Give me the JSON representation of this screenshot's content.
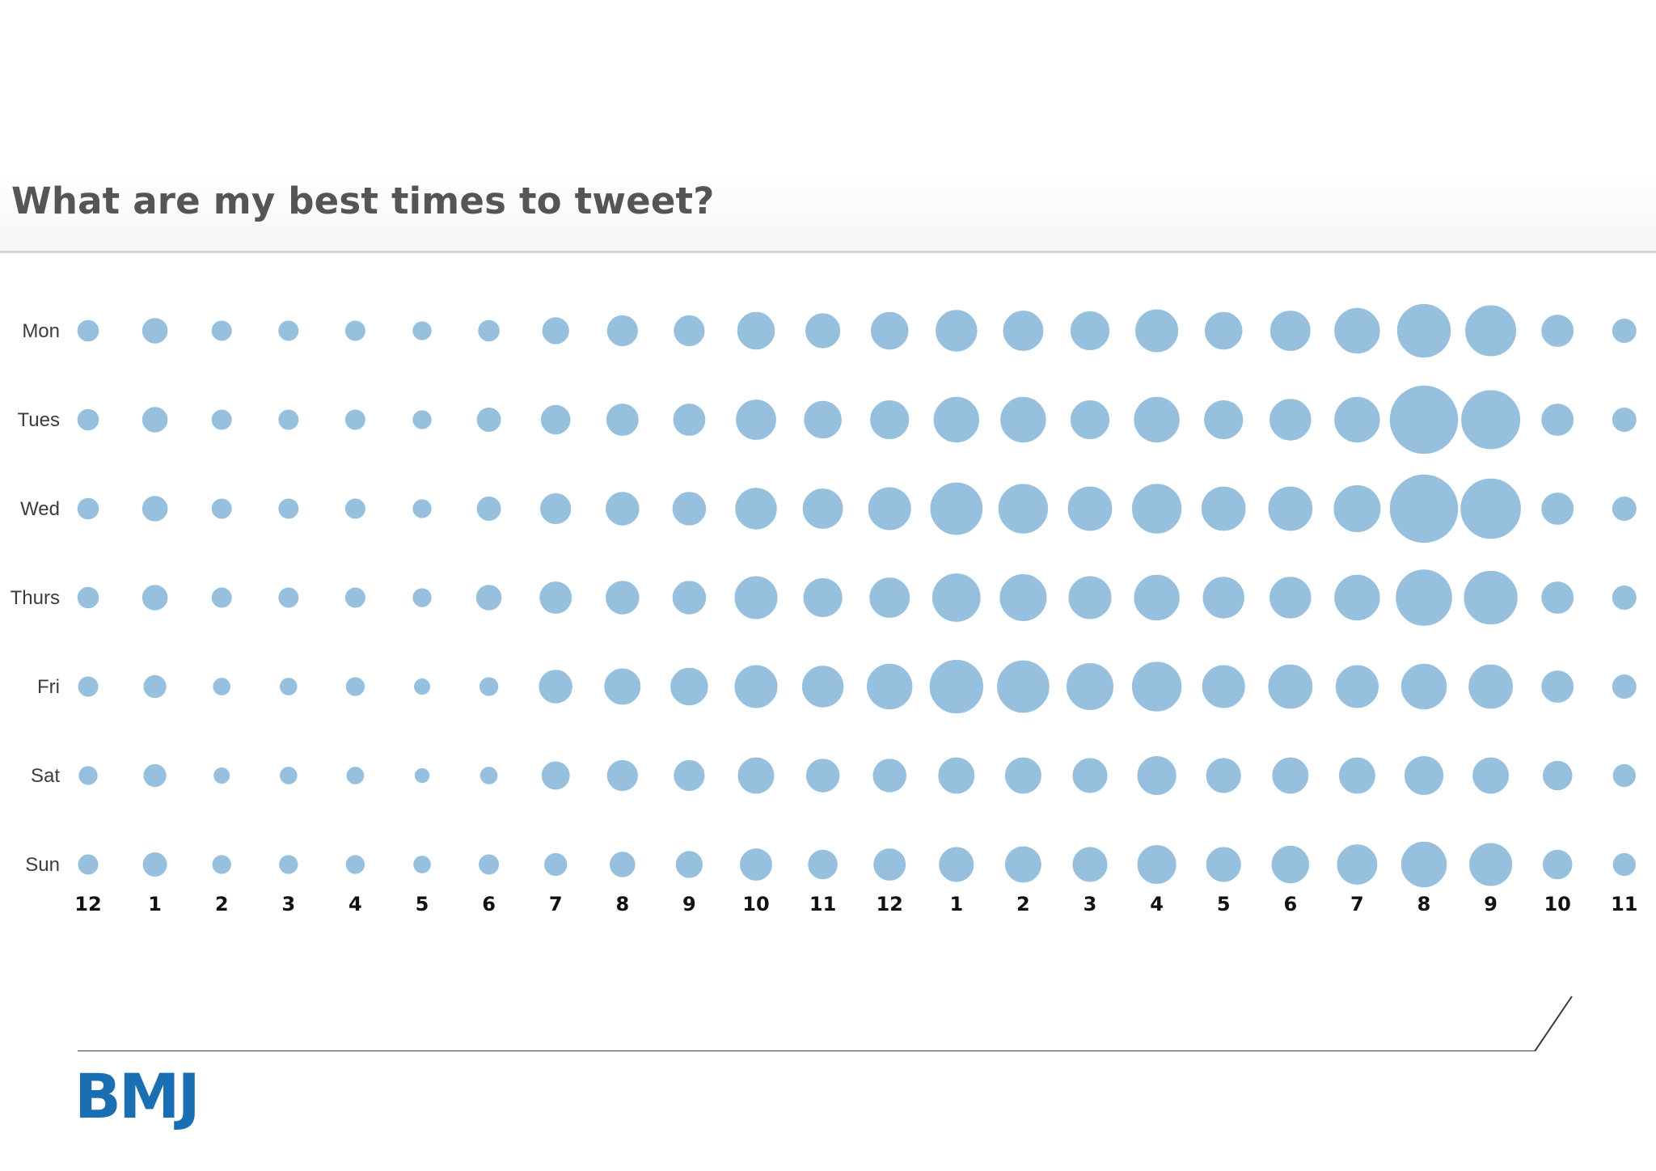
{
  "chart_data": {
    "type": "bubble",
    "title": "What are my best times to tweet?",
    "rows": [
      "Mon",
      "Tues",
      "Wed",
      "Thurs",
      "Fri",
      "Sat",
      "Sun"
    ],
    "columns": [
      "12",
      "1",
      "2",
      "3",
      "4",
      "5",
      "6",
      "7",
      "8",
      "9",
      "10",
      "11",
      "12",
      "1",
      "2",
      "3",
      "4",
      "5",
      "6",
      "7",
      "8",
      "9",
      "10",
      "11"
    ],
    "values": [
      [
        17,
        20,
        16,
        16,
        16,
        15,
        17,
        21,
        24,
        24,
        29,
        27,
        29,
        32,
        31,
        30,
        33,
        29,
        31,
        35,
        41,
        39,
        25,
        19
      ],
      [
        17,
        20,
        16,
        16,
        16,
        15,
        19,
        23,
        25,
        25,
        31,
        29,
        30,
        35,
        35,
        30,
        35,
        30,
        32,
        35,
        52,
        45,
        25,
        19
      ],
      [
        17,
        20,
        16,
        16,
        16,
        15,
        19,
        24,
        26,
        26,
        32,
        31,
        33,
        40,
        38,
        34,
        38,
        34,
        34,
        36,
        52,
        46,
        25,
        19
      ],
      [
        17,
        20,
        16,
        16,
        16,
        15,
        20,
        25,
        26,
        26,
        33,
        30,
        31,
        37,
        36,
        33,
        35,
        32,
        32,
        35,
        43,
        41,
        25,
        19
      ],
      [
        16,
        18,
        14,
        14,
        15,
        13,
        15,
        26,
        28,
        29,
        33,
        32,
        35,
        41,
        40,
        36,
        38,
        33,
        34,
        33,
        35,
        34,
        25,
        19
      ],
      [
        15,
        18,
        13,
        14,
        14,
        12,
        14,
        22,
        24,
        24,
        28,
        26,
        26,
        28,
        28,
        27,
        30,
        27,
        28,
        28,
        30,
        28,
        23,
        18
      ],
      [
        16,
        19,
        15,
        15,
        15,
        14,
        16,
        18,
        20,
        21,
        25,
        23,
        25,
        27,
        28,
        27,
        30,
        27,
        29,
        31,
        35,
        33,
        23,
        18
      ]
    ],
    "bubble_color": "#97c0df",
    "bubble_edge_color": "#ffffff"
  },
  "branding": {
    "logo_text": "BMJ",
    "logo_color": "#1a6fb3"
  },
  "colors": {
    "rule": "#3a3a3a"
  }
}
